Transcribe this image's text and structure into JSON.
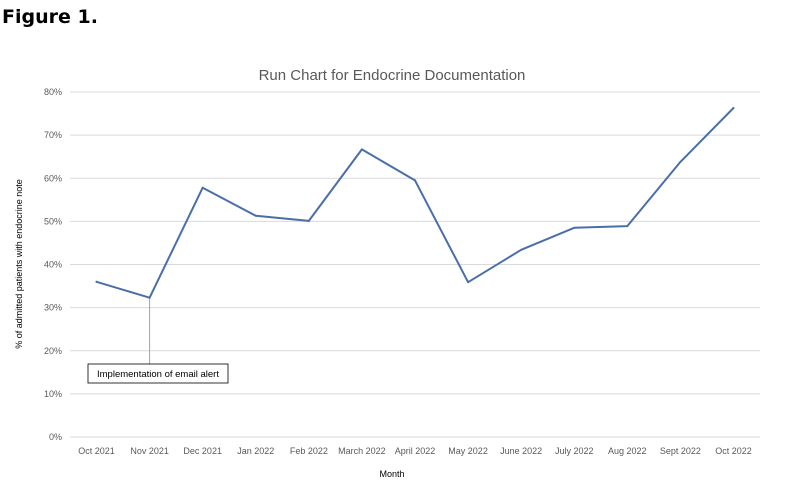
{
  "figure_label": "Figure 1.",
  "colors": {
    "line": "#4a6ea8",
    "grid": "#d9d9d9",
    "annotation_leader": "#8aa6c9"
  },
  "chart_data": {
    "type": "line",
    "title": "Run Chart for Endocrine Documentation",
    "xlabel": "Month",
    "ylabel": "% of admitted patients with endocrine note",
    "categories": [
      "Oct 2021",
      "Nov 2021",
      "Dec 2021",
      "Jan 2022",
      "Feb 2022",
      "March 2022",
      "April 2022",
      "May 2022",
      "June 2022",
      "July 2022",
      "Aug 2022",
      "Sept 2022",
      "Oct 2022"
    ],
    "values": [
      36,
      32.3,
      57.8,
      51.3,
      50.1,
      66.7,
      59.5,
      35.9,
      43.4,
      48.5,
      48.9,
      63.8,
      76.3
    ],
    "ylim": [
      0,
      80
    ],
    "yticks": [
      0,
      10,
      20,
      30,
      40,
      50,
      60,
      70,
      80
    ],
    "ytick_labels": [
      "0%",
      "10%",
      "20%",
      "30%",
      "40%",
      "50%",
      "60%",
      "70%",
      "80%"
    ],
    "grid": "horizontal",
    "legend": "none",
    "annotations": [
      {
        "text": "Implementation of email alert",
        "category": "Nov 2021"
      }
    ]
  }
}
